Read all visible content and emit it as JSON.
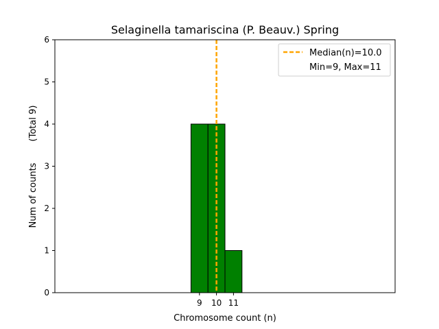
{
  "chart_data": {
    "type": "bar",
    "title": "Selaginella tamariscina (P. Beauv.) Spring",
    "xlabel": "Chromosome count (n)",
    "ylabel": "Num of counts",
    "ylabel_total": "(Total 9)",
    "xlim": [
      0.5,
      20.5
    ],
    "ylim": [
      0,
      6
    ],
    "x_ticks": [
      9,
      10,
      11
    ],
    "y_ticks": [
      0,
      1,
      2,
      3,
      4,
      5,
      6
    ],
    "bins": [
      {
        "x": 9,
        "count": 4
      },
      {
        "x": 10,
        "count": 4
      },
      {
        "x": 11,
        "count": 1
      }
    ],
    "baseline_extent": [
      0.5,
      15.0
    ],
    "median": 10.0,
    "legend": {
      "position": "top-right",
      "median_label": "Median(n)=10.0",
      "range_label": "Min=9, Max=11"
    },
    "colors": {
      "bar_fill": "#008000",
      "bar_edge": "#000000",
      "median_line": "#FFA500"
    }
  }
}
